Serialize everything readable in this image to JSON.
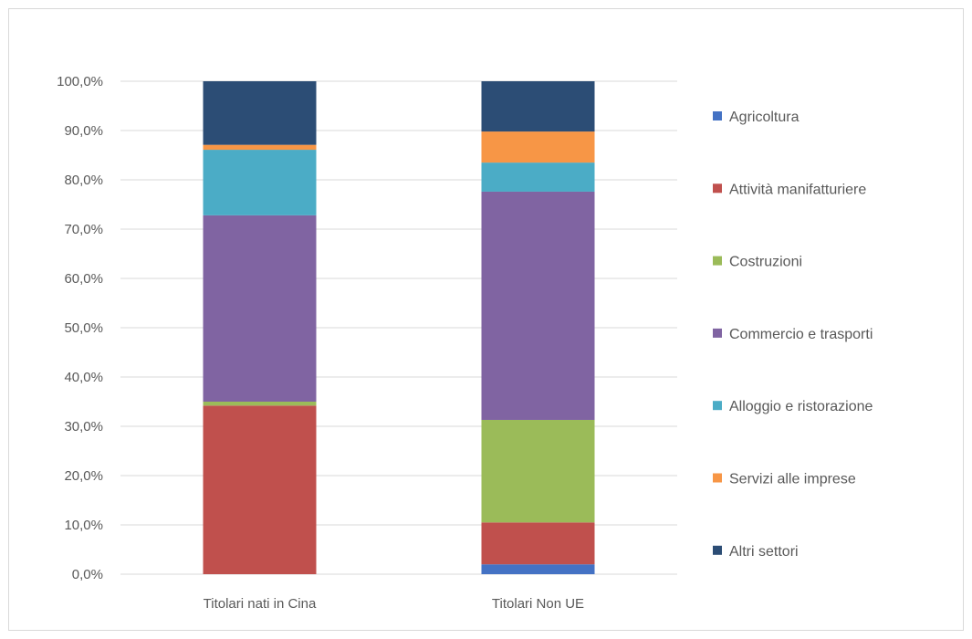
{
  "chart_data": {
    "type": "bar",
    "stacked": true,
    "title": "",
    "xlabel": "",
    "ylabel": "",
    "ylim": [
      0,
      100
    ],
    "y_ticks": [
      "0,0%",
      "10,0%",
      "20,0%",
      "30,0%",
      "40,0%",
      "50,0%",
      "60,0%",
      "70,0%",
      "80,0%",
      "90,0%",
      "100,0%"
    ],
    "categories": [
      "Titolari nati in Cina",
      "Titolari Non UE"
    ],
    "grid": true,
    "legend_position": "right",
    "series": [
      {
        "name": "Agricoltura",
        "color": "#4472c4",
        "values": [
          0.0,
          2.0
        ]
      },
      {
        "name": "Attività manifatturiere",
        "color": "#c0504d",
        "values": [
          34.2,
          8.5
        ]
      },
      {
        "name": "Costruzioni",
        "color": "#9bbb59",
        "values": [
          0.8,
          20.8
        ]
      },
      {
        "name": "Commercio e trasporti",
        "color": "#8064a2",
        "values": [
          37.8,
          46.3
        ]
      },
      {
        "name": "Alloggio e ristorazione",
        "color": "#4bacc6",
        "values": [
          13.3,
          5.9
        ]
      },
      {
        "name": "Servizi alle imprese",
        "color": "#f79646",
        "values": [
          1.0,
          6.3
        ]
      },
      {
        "name": "Altri settori",
        "color": "#2c4d75",
        "values": [
          12.9,
          10.2
        ]
      }
    ]
  }
}
